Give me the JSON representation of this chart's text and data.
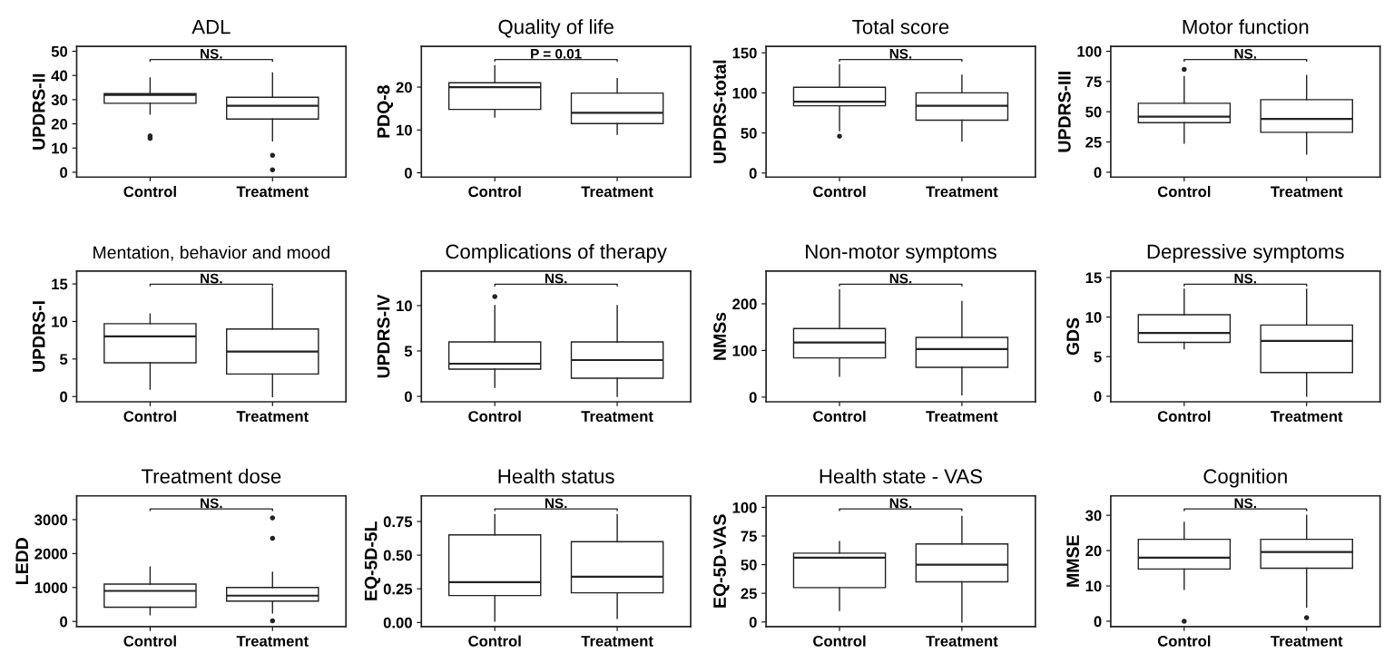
{
  "chart_data": [
    {
      "type": "box",
      "title": "ADL",
      "ylabel": "UPDRS-II",
      "categories": [
        "Control",
        "Treatment"
      ],
      "ylim": [
        -2,
        52
      ],
      "yticks": [
        0,
        10,
        20,
        30,
        40,
        50
      ],
      "annotations": [
        "NS."
      ],
      "boxes": [
        {
          "low": 24,
          "q1": 28.5,
          "median": 32,
          "q3": 32.5,
          "high": 39,
          "outliers": [
            14,
            15
          ]
        },
        {
          "low": 13,
          "q1": 22,
          "median": 27.5,
          "q3": 31,
          "high": 41,
          "outliers": [
            7,
            1
          ]
        }
      ]
    },
    {
      "type": "box",
      "title": "Quality of life",
      "ylabel": "PDQ-8",
      "categories": [
        "Control",
        "Treatment"
      ],
      "ylim": [
        -1,
        29.5
      ],
      "yticks": [
        0,
        10,
        20
      ],
      "annotations": [
        "P = 0.01"
      ],
      "boxes": [
        {
          "low": 13,
          "q1": 14.8,
          "median": 20,
          "q3": 21,
          "high": 25
        },
        {
          "low": 9,
          "q1": 11.5,
          "median": 14,
          "q3": 18.6,
          "high": 22
        }
      ]
    },
    {
      "type": "box",
      "title": "Total score",
      "ylabel": "UPDRS-total",
      "categories": [
        "Control",
        "Treatment"
      ],
      "ylim": [
        -5,
        158
      ],
      "yticks": [
        0,
        50,
        100,
        150
      ],
      "annotations": [
        "NS."
      ],
      "boxes": [
        {
          "low": 53,
          "q1": 84,
          "median": 89,
          "q3": 107,
          "high": 135,
          "outliers": [
            46
          ]
        },
        {
          "low": 40,
          "q1": 66,
          "median": 84,
          "q3": 100,
          "high": 122
        }
      ]
    },
    {
      "type": "box",
      "title": "Motor function",
      "ylabel": "UPDRS-III",
      "categories": [
        "Control",
        "Treatment"
      ],
      "ylim": [
        -4,
        104
      ],
      "yticks": [
        0,
        25,
        50,
        75,
        100
      ],
      "annotations": [
        "NS."
      ],
      "boxes": [
        {
          "low": 24,
          "q1": 41,
          "median": 46,
          "q3": 57,
          "high": 79,
          "outliers": [
            85
          ]
        },
        {
          "low": 15,
          "q1": 33,
          "median": 44,
          "q3": 60,
          "high": 80
        }
      ]
    },
    {
      "type": "box",
      "title": "Mentation, behavior and mood",
      "ylabel": "UPDRS-I",
      "categories": [
        "Control",
        "Treatment"
      ],
      "ylim": [
        -0.7,
        16.7
      ],
      "yticks": [
        0,
        5,
        10,
        15
      ],
      "annotations": [
        "NS."
      ],
      "boxes": [
        {
          "low": 1,
          "q1": 4.5,
          "median": 8,
          "q3": 9.7,
          "high": 11
        },
        {
          "low": 0,
          "q1": 3,
          "median": 6,
          "q3": 9,
          "high": 14.5
        }
      ]
    },
    {
      "type": "box",
      "title": "Complications of therapy",
      "ylabel": "UPDRS-IV",
      "categories": [
        "Control",
        "Treatment"
      ],
      "ylim": [
        -0.6,
        13.8
      ],
      "yticks": [
        0,
        5,
        10
      ],
      "annotations": [
        "NS."
      ],
      "boxes": [
        {
          "low": 1,
          "q1": 3,
          "median": 3.6,
          "q3": 6,
          "high": 10,
          "outliers": [
            11
          ]
        },
        {
          "low": 0,
          "q1": 2,
          "median": 4,
          "q3": 6,
          "high": 10
        }
      ]
    },
    {
      "type": "box",
      "title": "Non-motor symptoms",
      "ylabel": "NMSs",
      "categories": [
        "Control",
        "Treatment"
      ],
      "ylim": [
        -10,
        270
      ],
      "yticks": [
        0,
        100,
        200
      ],
      "annotations": [
        "NS."
      ],
      "boxes": [
        {
          "low": 45,
          "q1": 84,
          "median": 117,
          "q3": 147,
          "high": 230
        },
        {
          "low": 5,
          "q1": 64,
          "median": 103,
          "q3": 128,
          "high": 205
        }
      ]
    },
    {
      "type": "box",
      "title": "Depressive symptoms",
      "ylabel": "GDS",
      "categories": [
        "Control",
        "Treatment"
      ],
      "ylim": [
        -0.7,
        15.8
      ],
      "yticks": [
        0,
        5,
        10,
        15
      ],
      "annotations": [
        "NS."
      ],
      "boxes": [
        {
          "low": 6,
          "q1": 6.8,
          "median": 8,
          "q3": 10.3,
          "high": 13.5
        },
        {
          "low": 0,
          "q1": 3,
          "median": 7,
          "q3": 9,
          "high": 13.5
        }
      ]
    },
    {
      "type": "box",
      "title": "Treatment dose",
      "ylabel": "LEDD",
      "categories": [
        "Control",
        "Treatment"
      ],
      "ylim": [
        -150,
        3700
      ],
      "yticks": [
        0,
        1000,
        2000,
        3000
      ],
      "annotations": [
        "NS."
      ],
      "boxes": [
        {
          "low": 200,
          "q1": 420,
          "median": 900,
          "q3": 1100,
          "high": 1600
        },
        {
          "low": 250,
          "q1": 600,
          "median": 760,
          "q3": 1000,
          "high": 1450,
          "outliers": [
            3050,
            2450,
            20
          ]
        }
      ]
    },
    {
      "type": "box",
      "title": "Health status",
      "ylabel": "EQ-5D-5L",
      "categories": [
        "Control",
        "Treatment"
      ],
      "ylim": [
        -0.03,
        0.94
      ],
      "yticks": [
        {
          "value": 0,
          "label": "0.00"
        },
        {
          "value": 0.25,
          "label": "0.25"
        },
        {
          "value": 0.5,
          "label": "0.50"
        },
        {
          "value": 0.75,
          "label": "0.75"
        }
      ],
      "annotations": [
        "NS."
      ],
      "boxes": [
        {
          "low": 0.01,
          "q1": 0.2,
          "median": 0.3,
          "q3": 0.65,
          "high": 0.8
        },
        {
          "low": 0.03,
          "q1": 0.22,
          "median": 0.34,
          "q3": 0.6,
          "high": 0.8
        }
      ]
    },
    {
      "type": "box",
      "title": "Health state - VAS",
      "ylabel": "EQ-5D-VAS",
      "categories": [
        "Control",
        "Treatment"
      ],
      "ylim": [
        -4,
        110
      ],
      "yticks": [
        0,
        25,
        50,
        75,
        100
      ],
      "annotations": [
        "NS."
      ],
      "boxes": [
        {
          "low": 10,
          "q1": 30,
          "median": 56,
          "q3": 60,
          "high": 70
        },
        {
          "low": 0,
          "q1": 35,
          "median": 50,
          "q3": 68,
          "high": 92
        }
      ]
    },
    {
      "type": "box",
      "title": "Cognition",
      "ylabel": "MMSE",
      "categories": [
        "Control",
        "Treatment"
      ],
      "ylim": [
        -1.5,
        35.5
      ],
      "yticks": [
        0,
        10,
        20,
        30
      ],
      "annotations": [
        "NS."
      ],
      "boxes": [
        {
          "low": 9,
          "q1": 14.8,
          "median": 18,
          "q3": 23.2,
          "high": 28,
          "outliers": [
            0
          ]
        },
        {
          "low": 4,
          "q1": 15,
          "median": 19.6,
          "q3": 23.2,
          "high": 30,
          "outliers": [
            1
          ]
        }
      ]
    }
  ]
}
